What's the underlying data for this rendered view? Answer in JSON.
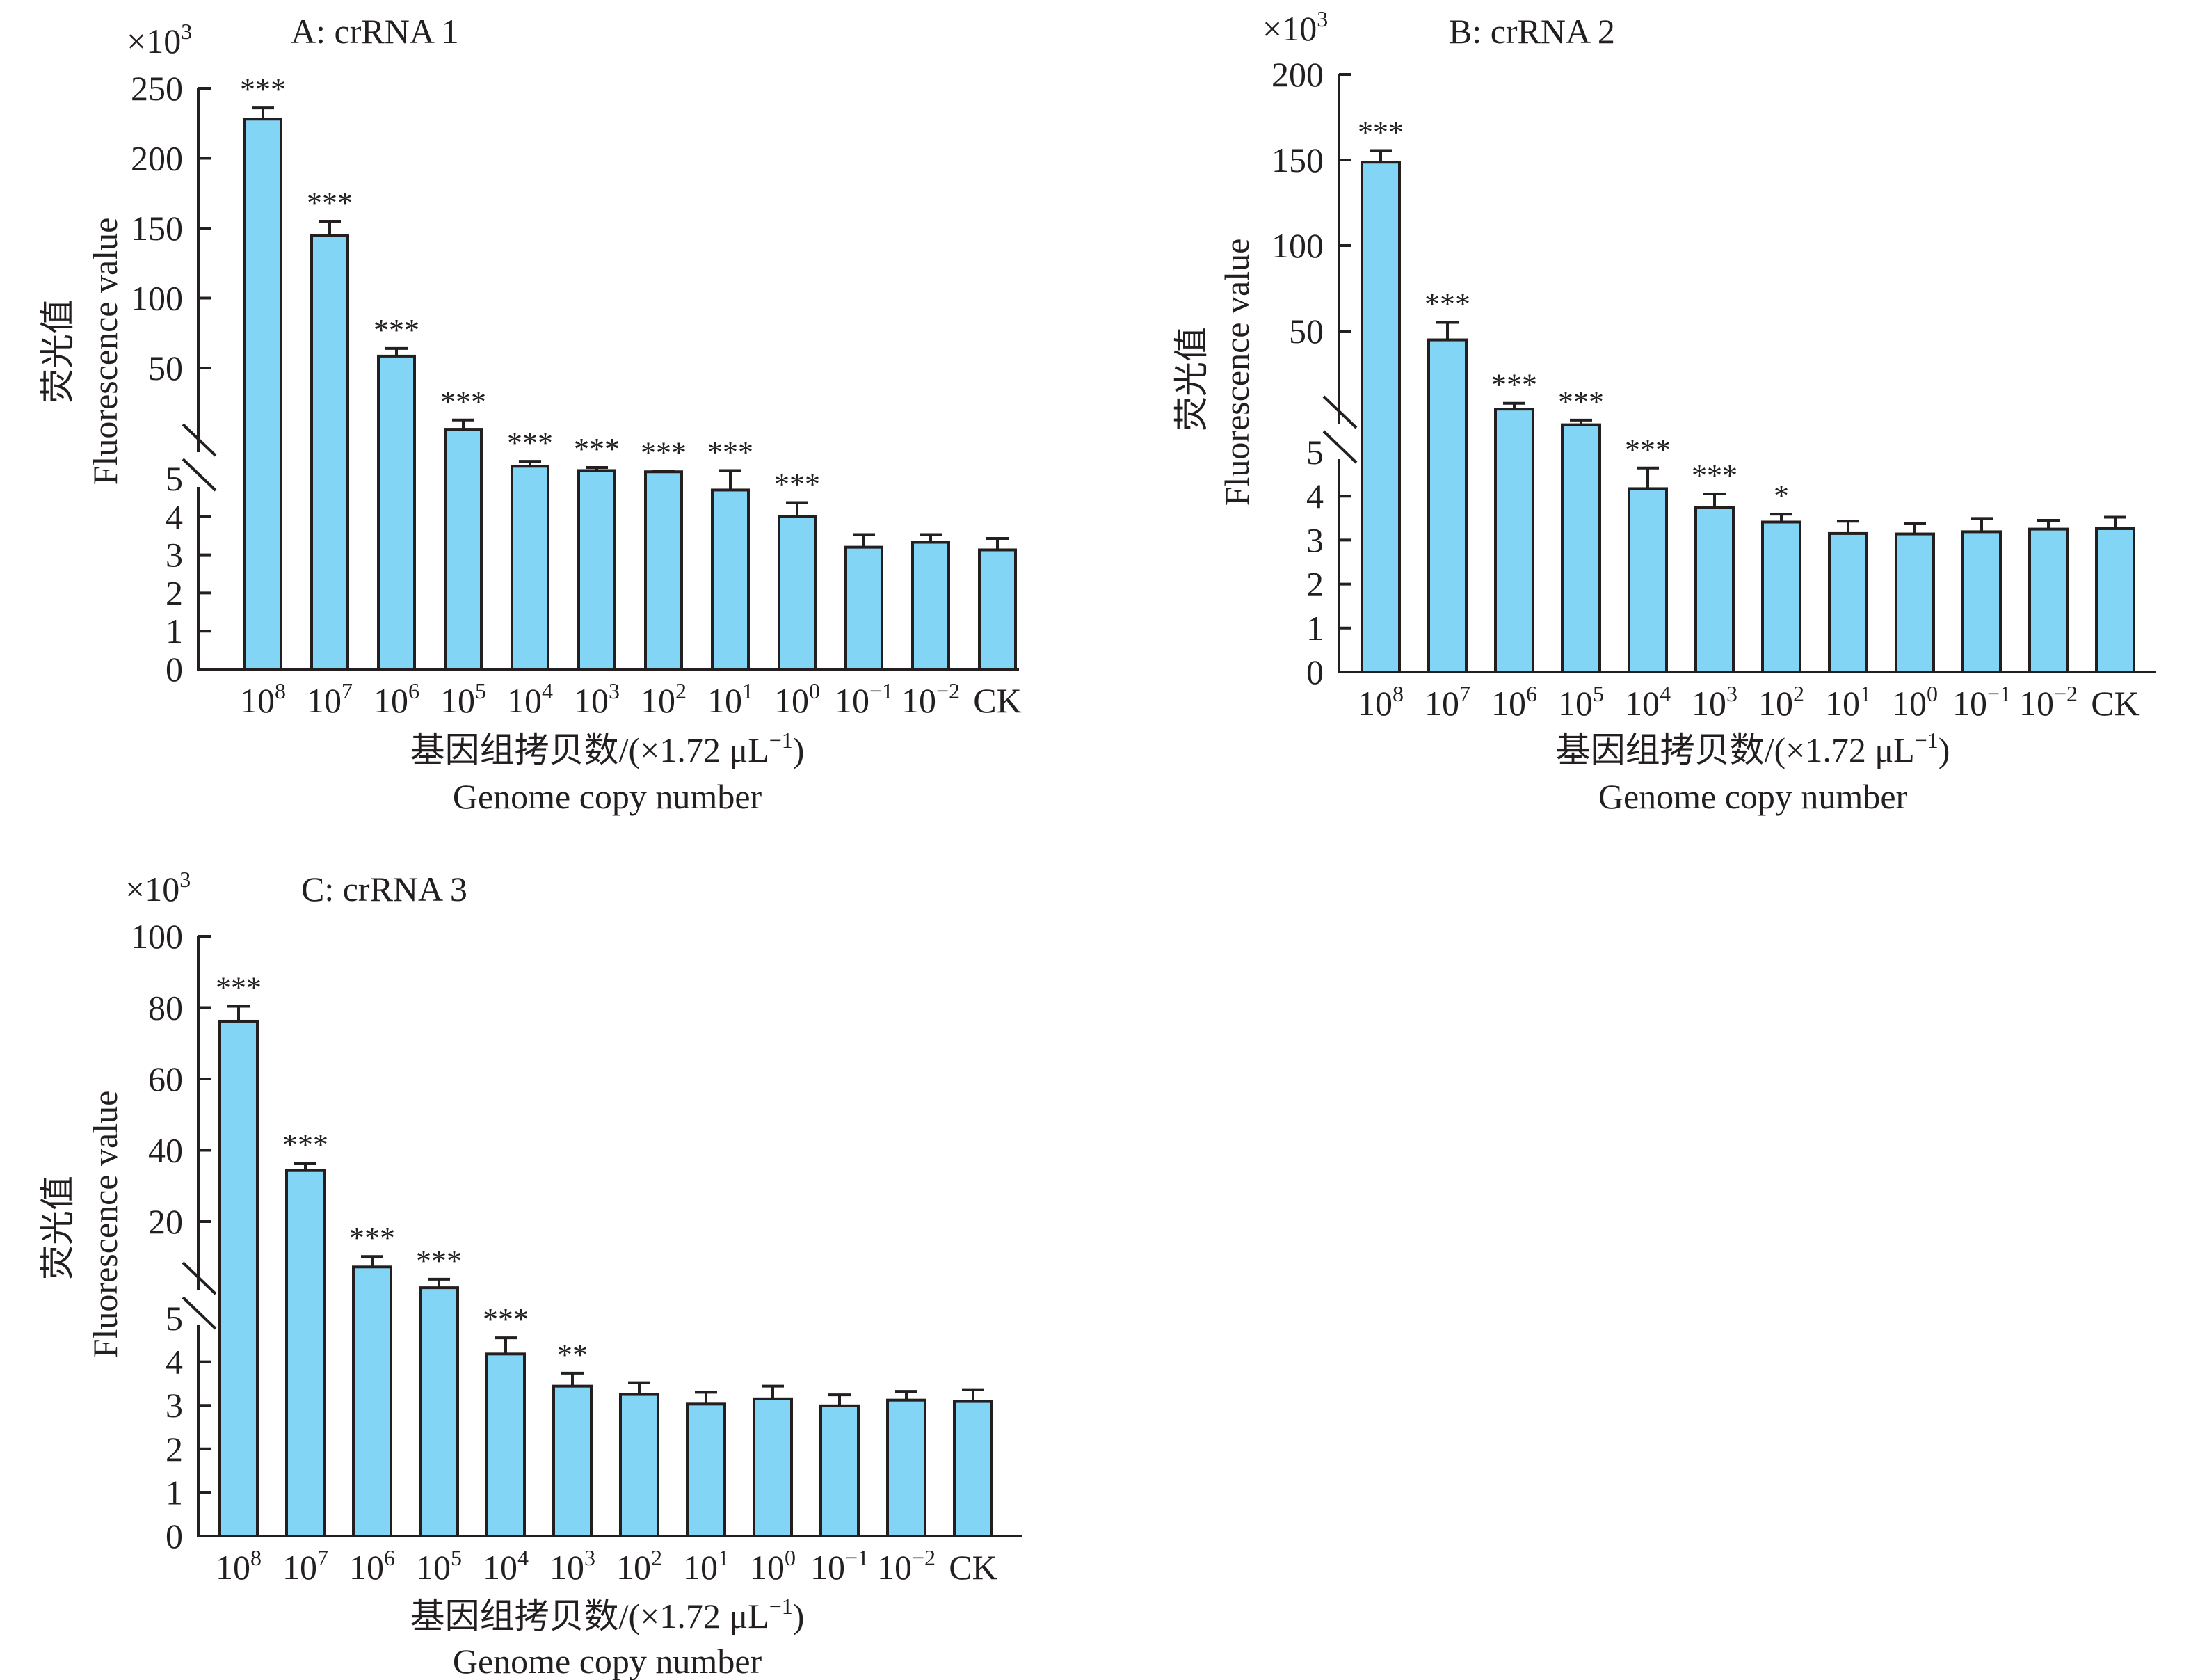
{
  "colors": {
    "bar_fill": "#83d5f5",
    "ink": "#231f20",
    "background": "#ffffff"
  },
  "chart_data": [
    {
      "id": "A",
      "type": "bar",
      "title": "A: crRNA 1",
      "unit_label": "×10",
      "unit_exp": "3",
      "ylabel_cn": "荧光值",
      "ylabel": "Fluorescence value",
      "xlabel_cn": "基因组拷贝数/(×1.72 μL",
      "xlabel_exp": "−1",
      "xlabel_close": ")",
      "xlabel": "Genome copy number",
      "y_axis_break": true,
      "ylim_lower": [
        0,
        5
      ],
      "ylim_upper": [
        50,
        250
      ],
      "yticks_lower": [
        0,
        1,
        2,
        3,
        4,
        5
      ],
      "yticks_upper": [
        50,
        100,
        150,
        200,
        250
      ],
      "categories": [
        {
          "base": "10",
          "exp": "8"
        },
        {
          "base": "10",
          "exp": "7"
        },
        {
          "base": "10",
          "exp": "6"
        },
        {
          "base": "10",
          "exp": "5"
        },
        {
          "base": "10",
          "exp": "4"
        },
        {
          "base": "10",
          "exp": "3"
        },
        {
          "base": "10",
          "exp": "2"
        },
        {
          "base": "10",
          "exp": "1"
        },
        {
          "base": "10",
          "exp": "0"
        },
        {
          "base": "10",
          "exp": "−1"
        },
        {
          "base": "10",
          "exp": "−2"
        },
        {
          "base": "CK",
          "exp": ""
        }
      ],
      "values": [
        228,
        145,
        58.5,
        13,
        7,
        6.3,
        6.1,
        4.7,
        4.0,
        3.2,
        3.33,
        3.13
      ],
      "errors": [
        8,
        10,
        5.5,
        1.5,
        0.8,
        0.5,
        0.1,
        1.6,
        0.37,
        0.33,
        0.2,
        0.3
      ],
      "significance": [
        "***",
        "***",
        "***",
        "***",
        "***",
        "***",
        "***",
        "***",
        "***",
        "",
        "",
        ""
      ],
      "scale": {
        "gap_top_value": 15
      }
    },
    {
      "id": "B",
      "type": "bar",
      "title": "B: crRNA 2",
      "unit_label": "×10",
      "unit_exp": "3",
      "ylabel_cn": "荧光值",
      "ylabel": "Fluorescence value",
      "xlabel_cn": "基因组拷贝数/(×1.72 μL",
      "xlabel_exp": "−1",
      "xlabel_close": ")",
      "xlabel": "Genome copy number",
      "y_axis_break": true,
      "ylim_lower": [
        0,
        5
      ],
      "ylim_upper": [
        50,
        200
      ],
      "yticks_lower": [
        0,
        1,
        2,
        3,
        4,
        5
      ],
      "yticks_upper": [
        50,
        100,
        150,
        200
      ],
      "categories": [
        {
          "base": "10",
          "exp": "8"
        },
        {
          "base": "10",
          "exp": "7"
        },
        {
          "base": "10",
          "exp": "6"
        },
        {
          "base": "10",
          "exp": "5"
        },
        {
          "base": "10",
          "exp": "4"
        },
        {
          "base": "10",
          "exp": "3"
        },
        {
          "base": "10",
          "exp": "2"
        },
        {
          "base": "10",
          "exp": "1"
        },
        {
          "base": "10",
          "exp": "0"
        },
        {
          "base": "10",
          "exp": "−1"
        },
        {
          "base": "10",
          "exp": "−2"
        },
        {
          "base": "CK",
          "exp": ""
        }
      ],
      "values": [
        148.7,
        44.9,
        16,
        12,
        4.17,
        3.75,
        3.41,
        3.15,
        3.14,
        3.19,
        3.25,
        3.26
      ],
      "errors": [
        6.8,
        10.2,
        1.5,
        1.2,
        0.47,
        0.3,
        0.18,
        0.28,
        0.23,
        0.3,
        0.2,
        0.26
      ],
      "significance": [
        "***",
        "***",
        "***",
        "***",
        "***",
        "***",
        "*",
        "",
        "",
        "",
        "",
        ""
      ],
      "scale": {
        "gap_top_value": 25
      }
    },
    {
      "id": "C",
      "type": "bar",
      "title": "C: crRNA 3",
      "unit_label": "×10",
      "unit_exp": "3",
      "ylabel_cn": "荧光值",
      "ylabel": "Fluorescence value",
      "xlabel_cn": "基因组拷贝数/(×1.72 μL",
      "xlabel_exp": "−1",
      "xlabel_close": ")",
      "xlabel": "Genome copy number",
      "y_axis_break": true,
      "ylim_lower": [
        0,
        5
      ],
      "ylim_upper": [
        20,
        100
      ],
      "yticks_lower": [
        0,
        1,
        2,
        3,
        4,
        5
      ],
      "yticks_upper": [
        20,
        40,
        60,
        80,
        100
      ],
      "categories": [
        {
          "base": "10",
          "exp": "8"
        },
        {
          "base": "10",
          "exp": "7"
        },
        {
          "base": "10",
          "exp": "6"
        },
        {
          "base": "10",
          "exp": "5"
        },
        {
          "base": "10",
          "exp": "4"
        },
        {
          "base": "10",
          "exp": "3"
        },
        {
          "base": "10",
          "exp": "2"
        },
        {
          "base": "10",
          "exp": "1"
        },
        {
          "base": "10",
          "exp": "0"
        },
        {
          "base": "10",
          "exp": "−1"
        },
        {
          "base": "10",
          "exp": "−2"
        },
        {
          "base": "CK",
          "exp": ""
        }
      ],
      "values": [
        76.2,
        34.3,
        9.2,
        7.5,
        4.18,
        3.44,
        3.25,
        3.03,
        3.15,
        2.99,
        3.12,
        3.09
      ],
      "errors": [
        4.2,
        2.1,
        1.0,
        0.7,
        0.37,
        0.3,
        0.27,
        0.27,
        0.29,
        0.25,
        0.2,
        0.27
      ],
      "significance": [
        "***",
        "***",
        "***",
        "***",
        "***",
        "**",
        "",
        "",
        "",
        "",
        "",
        ""
      ],
      "scale": {
        "gap_top_value": 10
      }
    }
  ]
}
